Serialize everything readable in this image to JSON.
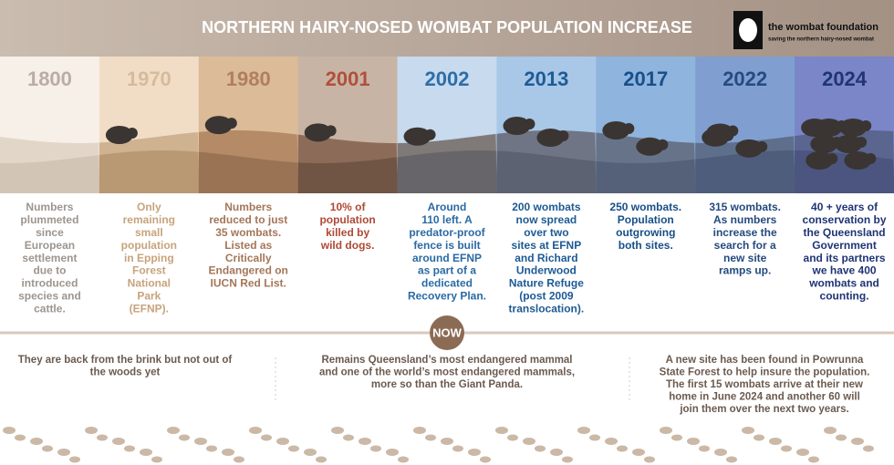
{
  "header": {
    "title": "NORTHERN HAIRY-NOSED WOMBAT  POPULATION INCREASE",
    "logo_name": "the wombat foundation",
    "logo_tagline": "saving the northern hairy-nosed wombat"
  },
  "timeline": [
    {
      "year": "1800",
      "lines": [
        "Numbers",
        "plummeted",
        "since",
        "European",
        "settlement",
        "due to",
        "introduced",
        "species and",
        "cattle."
      ]
    },
    {
      "year": "1970",
      "lines": [
        "Only",
        "remaining",
        "small",
        "population",
        "in Epping",
        "Forest",
        "National",
        "Park",
        "(EFNP)."
      ]
    },
    {
      "year": "1980",
      "lines": [
        "Numbers",
        "reduced to just",
        "35 wombats.",
        "Listed as",
        "Critically",
        "Endangered on",
        "IUCN Red List."
      ]
    },
    {
      "year": "2001",
      "lines": [
        "10% of",
        "population",
        "killed by",
        "wild dogs."
      ]
    },
    {
      "year": "2002",
      "lines": [
        "Around",
        "110 left. A",
        "predator-proof",
        "fence is built",
        "around EFNP",
        "as part of a",
        "dedicated",
        "Recovery Plan."
      ]
    },
    {
      "year": "2013",
      "lines": [
        "200 wombats",
        "now spread",
        "over two",
        "sites at EFNP",
        "and Richard",
        "Underwood",
        "Nature Refuge",
        "(post 2009",
        "translocation)."
      ]
    },
    {
      "year": "2017",
      "lines": [
        "250 wombats.",
        "Population",
        "outgrowing",
        "both sites."
      ]
    },
    {
      "year": "2022",
      "lines": [
        "315 wombats.",
        "As numbers",
        "increase the",
        "search for a",
        "new site",
        "ramps up."
      ]
    },
    {
      "year": "2024",
      "lines": [
        "40 +  years of",
        "conservation by",
        "the Queensland",
        "Government",
        "and its partners",
        "we have 400",
        "wombats and",
        "counting."
      ]
    }
  ],
  "now": {
    "badge": "NOW",
    "notes": [
      {
        "lines": [
          "They are back from the brink but not out of",
          "the woods yet"
        ]
      },
      {
        "lines": [
          "Remains Queensland’s most endangered mammal",
          "and one of the world’s most endangered mammals,",
          "more so than the Giant Panda."
        ]
      },
      {
        "lines": [
          "A new site has been found in Powrunna",
          "State Forest to help insure the population.",
          "The first 15 wombats arrive at their new",
          "home in June 2024 and another 60 will",
          "join them over the next two years."
        ]
      }
    ]
  }
}
